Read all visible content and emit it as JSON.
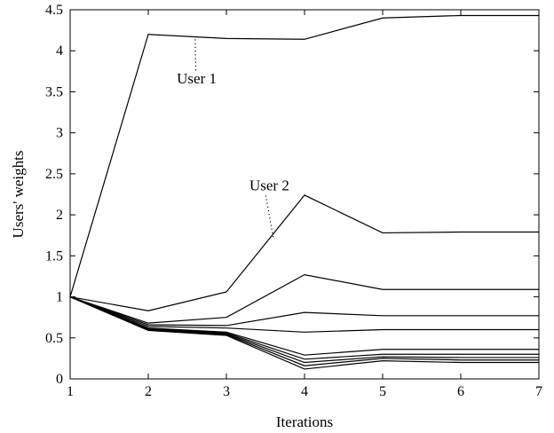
{
  "chart_data": {
    "type": "line",
    "title": "",
    "xlabel": "Iterations",
    "ylabel": "Users' weights",
    "xlim": [
      1,
      7
    ],
    "ylim": [
      0,
      4.5
    ],
    "xticks": [
      "1",
      "2",
      "3",
      "4",
      "5",
      "6",
      "7"
    ],
    "yticks": [
      "0",
      "0.5",
      "1",
      "1.5",
      "2",
      "2.5",
      "3",
      "3.5",
      "4",
      "4.5"
    ],
    "grid": false,
    "x": [
      1,
      2,
      3,
      4,
      5,
      6,
      7
    ],
    "series": [
      {
        "values": [
          1,
          4.2,
          4.15,
          4.14,
          4.4,
          4.43,
          4.43
        ]
      },
      {
        "values": [
          1,
          0.83,
          1.06,
          2.24,
          1.78,
          1.79,
          1.79
        ]
      },
      {
        "values": [
          1,
          0.68,
          0.75,
          1.27,
          1.09,
          1.09,
          1.09
        ]
      },
      {
        "values": [
          1,
          0.66,
          0.65,
          0.81,
          0.77,
          0.77,
          0.77
        ]
      },
      {
        "values": [
          1,
          0.64,
          0.62,
          0.57,
          0.6,
          0.6,
          0.6
        ]
      },
      {
        "values": [
          1,
          0.62,
          0.57,
          0.29,
          0.36,
          0.36,
          0.36
        ]
      },
      {
        "values": [
          1,
          0.61,
          0.56,
          0.24,
          0.3,
          0.3,
          0.3
        ]
      },
      {
        "values": [
          1,
          0.6,
          0.55,
          0.2,
          0.27,
          0.26,
          0.26
        ]
      },
      {
        "values": [
          1,
          0.6,
          0.54,
          0.16,
          0.25,
          0.23,
          0.23
        ]
      },
      {
        "values": [
          1,
          0.59,
          0.53,
          0.12,
          0.22,
          0.2,
          0.2
        ]
      }
    ],
    "annotations": [
      {
        "text": "User 1",
        "x": 2.62,
        "y": 3.6,
        "target_x": 2.6,
        "target_y": 4.17
      },
      {
        "text": "User 2",
        "x": 3.55,
        "y": 2.3,
        "target_x": 3.6,
        "target_y": 1.72
      }
    ]
  }
}
